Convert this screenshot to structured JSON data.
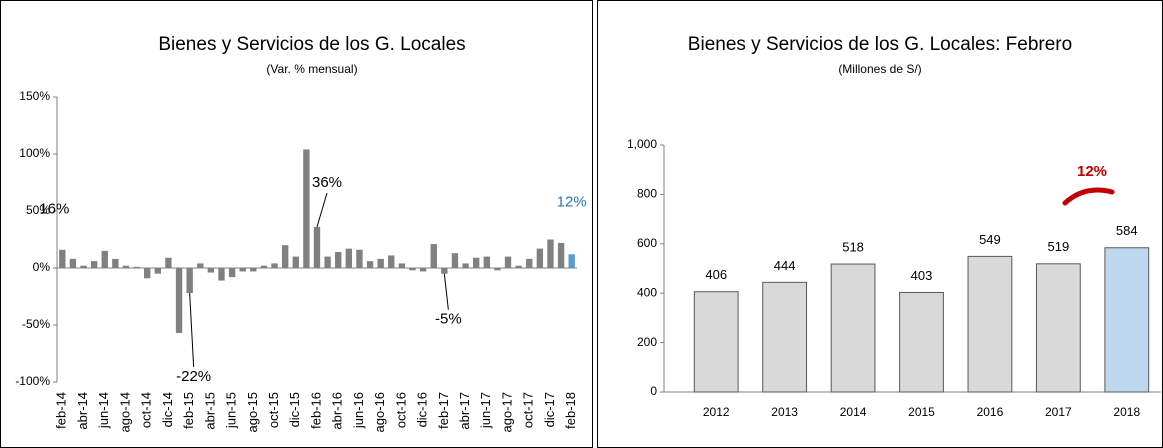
{
  "chart_data": [
    {
      "type": "bar",
      "title": "Bienes y Servicios de los G. Locales",
      "subtitle": "(Var. % mensual)",
      "categories": [
        "feb-14",
        null,
        "abr-14",
        null,
        "jun-14",
        null,
        "ago-14",
        null,
        "oct-14",
        null,
        "dic-14",
        null,
        "feb-15",
        null,
        "abr-15",
        null,
        "jun-15",
        null,
        "ago-15",
        null,
        "oct-15",
        null,
        "dic-15",
        null,
        "feb-16",
        null,
        "abr-16",
        null,
        "jun-16",
        null,
        "ago-16",
        null,
        "oct-16",
        null,
        "dic-16",
        null,
        "feb-17",
        null,
        "abr-17",
        null,
        "jun-17",
        null,
        "ago-17",
        null,
        "oct-17",
        null,
        "dic-17",
        null,
        "feb-18"
      ],
      "values": [
        16,
        8,
        2,
        6,
        15,
        8,
        2,
        1,
        -9,
        -5,
        9,
        -57,
        -22,
        4,
        -4,
        -11,
        -8,
        -3,
        -3,
        2,
        4,
        20,
        10,
        104,
        36,
        10,
        14,
        17,
        16,
        6,
        8,
        11,
        4,
        -2,
        -3,
        21,
        -5,
        13,
        4,
        9,
        10,
        -2,
        10,
        2,
        8,
        17,
        25,
        22,
        12
      ],
      "value_labels": [
        "16%",
        null,
        null,
        null,
        null,
        null,
        null,
        null,
        null,
        null,
        null,
        null,
        "-22%",
        null,
        null,
        null,
        null,
        null,
        null,
        null,
        null,
        null,
        null,
        null,
        "36%",
        null,
        null,
        null,
        null,
        null,
        null,
        null,
        null,
        null,
        null,
        null,
        "-5%",
        null,
        null,
        null,
        null,
        null,
        null,
        null,
        null,
        null,
        null,
        null,
        "12%"
      ],
      "colors": [
        "#808080",
        "#808080",
        "#808080",
        "#808080",
        "#808080",
        "#808080",
        "#808080",
        "#808080",
        "#808080",
        "#808080",
        "#808080",
        "#808080",
        "#808080",
        "#808080",
        "#808080",
        "#808080",
        "#808080",
        "#808080",
        "#808080",
        "#808080",
        "#808080",
        "#808080",
        "#808080",
        "#808080",
        "#808080",
        "#808080",
        "#808080",
        "#808080",
        "#808080",
        "#808080",
        "#808080",
        "#808080",
        "#808080",
        "#808080",
        "#808080",
        "#808080",
        "#808080",
        "#808080",
        "#808080",
        "#808080",
        "#808080",
        "#808080",
        "#808080",
        "#808080",
        "#808080",
        "#808080",
        "#808080",
        "#808080",
        "#5b9bd5"
      ],
      "ylim": [
        -100,
        150
      ],
      "yticks": [
        {
          "value": -100,
          "label": "-100%"
        },
        {
          "value": -50,
          "label": "-50%"
        },
        {
          "value": 0,
          "label": "0%"
        },
        {
          "value": 50,
          "label": "50%"
        },
        {
          "value": 100,
          "label": "100%"
        },
        {
          "value": 150,
          "label": "150%"
        }
      ]
    },
    {
      "type": "bar",
      "title": "Bienes y Servicios de los G. Locales: Febrero",
      "subtitle": "(Millones de S/)",
      "categories": [
        "2012",
        "2013",
        "2014",
        "2015",
        "2016",
        "2017",
        "2018"
      ],
      "values": [
        406,
        444,
        518,
        403,
        549,
        519,
        584
      ],
      "colors": [
        "#d9d9d9",
        "#d9d9d9",
        "#d9d9d9",
        "#d9d9d9",
        "#d9d9d9",
        "#d9d9d9",
        "#bdd7ee"
      ],
      "annotation": "12%",
      "ylim": [
        0,
        1000
      ],
      "yticks": [
        0,
        200,
        400,
        600,
        800,
        {
          "value": 1000,
          "label": "1,000"
        }
      ]
    }
  ]
}
